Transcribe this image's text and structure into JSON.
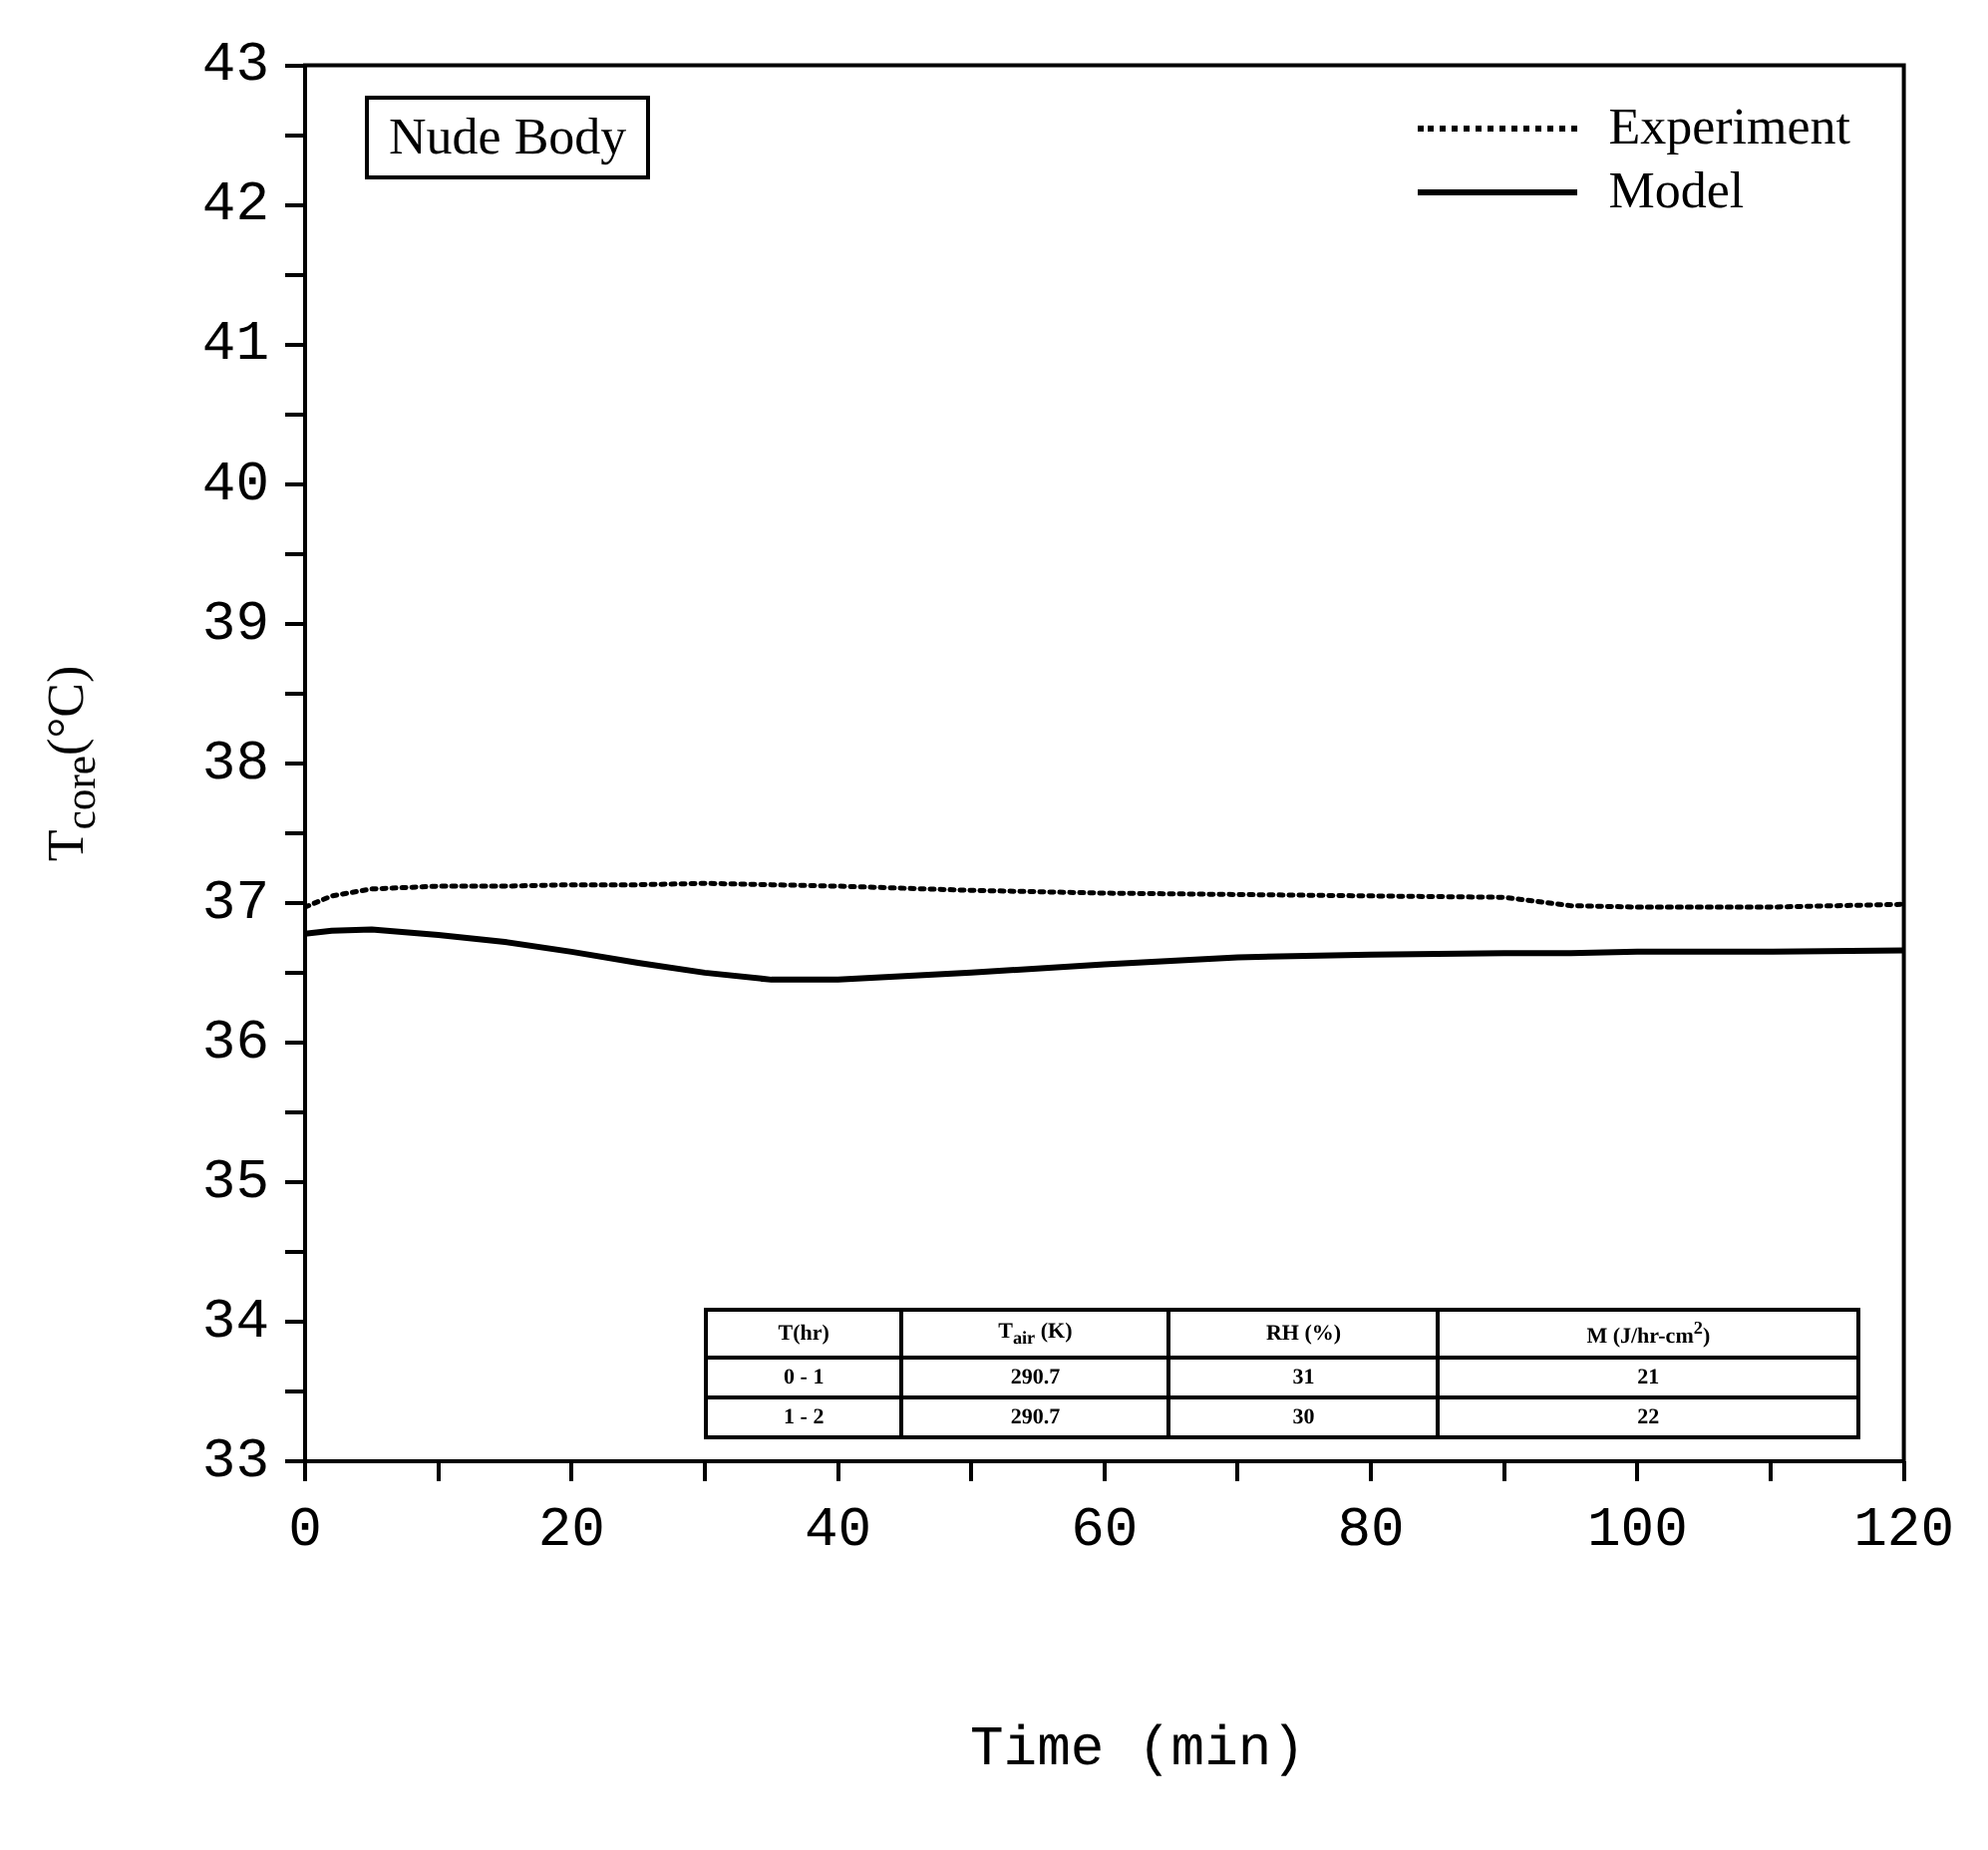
{
  "chart_data": {
    "type": "line",
    "xlabel": "Time (min)",
    "ylabel": "T$_{core}$(°C)",
    "x": [
      0,
      2,
      5,
      10,
      15,
      20,
      25,
      30,
      35,
      40,
      50,
      60,
      70,
      80,
      90,
      95,
      100,
      110,
      120
    ],
    "series": [
      {
        "name": "Experiment",
        "color": "#000000",
        "line_style": "dotted",
        "values": [
          36.97,
          37.05,
          37.1,
          37.12,
          37.12,
          37.13,
          37.13,
          37.14,
          37.13,
          37.12,
          37.09,
          37.07,
          37.06,
          37.05,
          37.04,
          36.98,
          36.97,
          36.97,
          36.99
        ]
      },
      {
        "name": "Model",
        "color": "#000000",
        "line_style": "solid",
        "values": [
          36.78,
          36.8,
          36.81,
          36.77,
          36.72,
          36.65,
          36.57,
          36.5,
          36.45,
          36.45,
          36.5,
          36.56,
          36.61,
          36.63,
          36.64,
          36.64,
          36.65,
          36.65,
          36.66
        ]
      }
    ],
    "xlim": [
      0,
      120
    ],
    "xticks": [
      0,
      {
        "value": 10,
        "label": null
      },
      20,
      {
        "value": 30,
        "label": null
      },
      40,
      {
        "value": 50,
        "label": null
      },
      60,
      {
        "value": 70,
        "label": null
      },
      80,
      {
        "value": 90,
        "label": null
      },
      100,
      {
        "value": 110,
        "label": null
      },
      120
    ],
    "ylim": [
      33,
      43
    ],
    "yticks": [
      33,
      {
        "value": 33.5,
        "label": null
      },
      34,
      {
        "value": 34.5,
        "label": null
      },
      35,
      {
        "value": 35.5,
        "label": null
      },
      36,
      {
        "value": 36.5,
        "label": null
      },
      37,
      {
        "value": 37.5,
        "label": null
      },
      38,
      {
        "value": 38.5,
        "label": null
      },
      39,
      {
        "value": 39.5,
        "label": null
      },
      40,
      {
        "value": 40.5,
        "label": null
      },
      41,
      {
        "value": 41.5,
        "label": null
      },
      42,
      {
        "value": 42.5,
        "label": null
      },
      43
    ],
    "grid": false,
    "legend": "top right",
    "marker": "none",
    "annotations": [
      "Nude Body",
      "T(hr)",
      "T$_{air}$ (K)",
      "RH (%)",
      "M (J/hr-cm$^{2}$)",
      "0 - 1",
      "290.7",
      "31",
      "21",
      "1 - 2",
      "290.7",
      "30",
      "22"
    ]
  }
}
